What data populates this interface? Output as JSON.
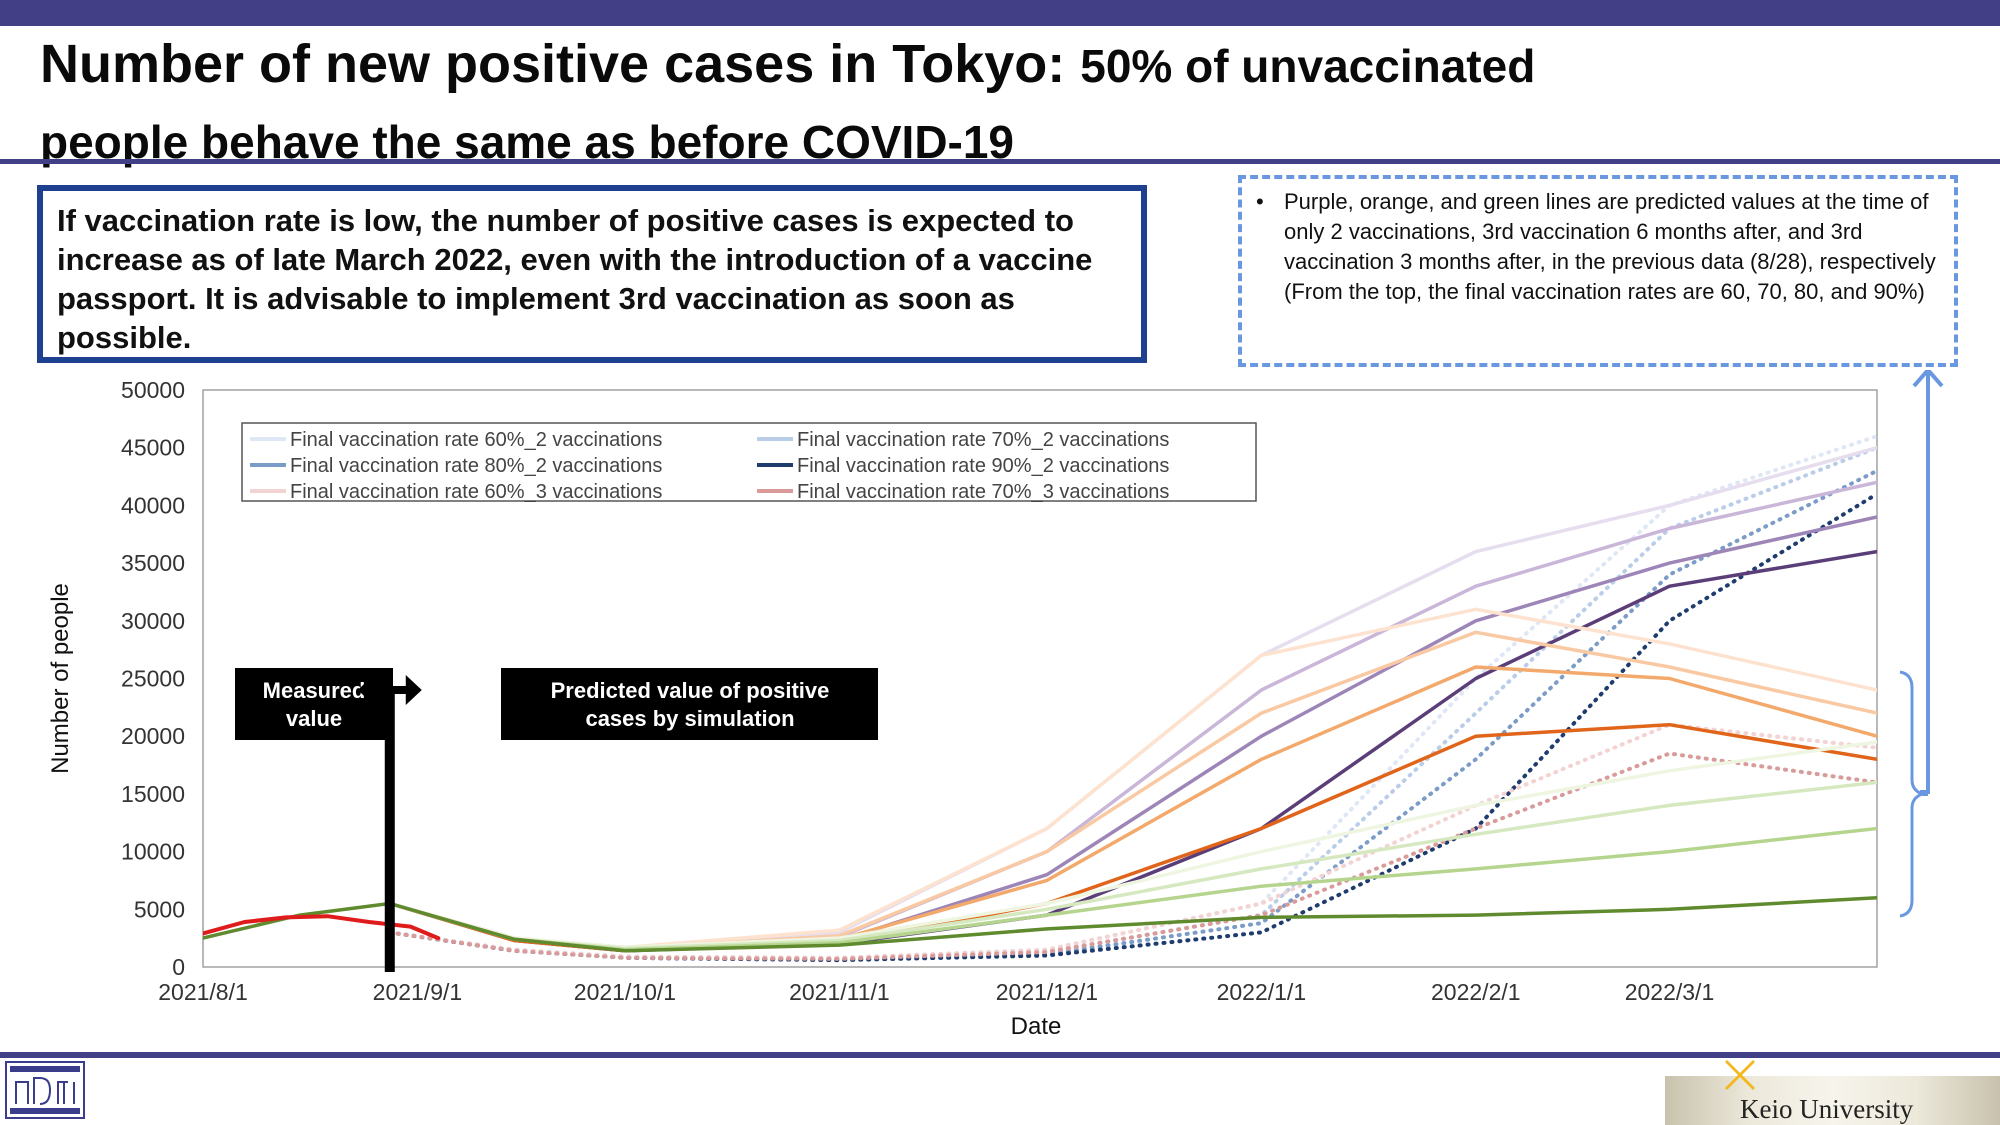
{
  "slide": {
    "title_part1": "Number of new positive cases in Tokyo: ",
    "title_part2": "50% of unvaccinated",
    "title_line2": "people behave the same as before COVID-19",
    "summary": "If vaccination rate is low, the number of positive cases is expected to increase as of late March 2022, even with the introduction of a vaccine passport. It is advisable to implement 3rd vaccination as soon as possible.",
    "note_bullet": "•",
    "note_line1": "Purple, orange, and green lines are predicted values at the time of only 2 vaccinations, 3rd vaccination 6 months after, and 3rd vaccination 3 months after, in the previous data (8/28), respectively",
    "note_line2": "(From the top, the final vaccination rates are 60, 70, 80, and 90%)",
    "footer_logo_text": "Keio University",
    "colors": {
      "band": "#423f86",
      "summary_border": "#1f3f8f",
      "note_border": "#6a98e0"
    }
  },
  "chart_data": {
    "type": "line",
    "xlabel": "Date",
    "ylabel": "Number of people",
    "ylim": [
      0,
      50000
    ],
    "yticks": [
      0,
      5000,
      10000,
      15000,
      20000,
      25000,
      30000,
      35000,
      40000,
      45000,
      50000
    ],
    "xticks": [
      "2021/8/1",
      "2021/9/1",
      "2021/10/1",
      "2021/11/1",
      "2021/12/1",
      "2022/1/1",
      "2022/2/1",
      "2022/3/1"
    ],
    "xrange": [
      "2021-08-01",
      "2022-03-31"
    ],
    "grid": false,
    "legend_position": "top-left inside plot",
    "legend": [
      {
        "label": "Final vaccination rate 60%_2 vaccinations",
        "color": "#dfe6f5"
      },
      {
        "label": "Final vaccination rate 70%_2 vaccinations",
        "color": "#b9cde9"
      },
      {
        "label": "Final vaccination rate 80%_2 vaccinations",
        "color": "#7c9cc8"
      },
      {
        "label": "Final vaccination rate 90%_2 vaccinations",
        "color": "#1f3c6e"
      },
      {
        "label": "Final vaccination rate 60%_3 vaccinations",
        "color": "#f3d2d2"
      },
      {
        "label": "Final vaccination rate 70%_3 vaccinations",
        "color": "#d99a9a"
      }
    ],
    "annotations": {
      "measured": "Measured value",
      "predicted": "Predicted value of positive cases by simulation",
      "split_date": "2021-08-28"
    },
    "series": [
      {
        "name": "Measured",
        "style": "measured",
        "color": "#e01b1b",
        "x": [
          "2021-08-01",
          "2021-08-07",
          "2021-08-13",
          "2021-08-19",
          "2021-08-25",
          "2021-08-31",
          "2021-09-04"
        ],
        "y": [
          2900,
          3900,
          4300,
          4400,
          3900,
          3500,
          2500
        ]
      },
      {
        "name": "Final vaccination rate 60%_2 vaccinations",
        "style": "dotted",
        "color": "#dfe6f5",
        "x": [
          "2021-08-28",
          "2021-09-15",
          "2021-10-01",
          "2021-11-01",
          "2021-12-01",
          "2022-01-01",
          "2022-02-01",
          "2022-03-01",
          "2022-03-31"
        ],
        "y": [
          3000,
          1500,
          900,
          800,
          1500,
          5500,
          25000,
          40000,
          46000
        ]
      },
      {
        "name": "Final vaccination rate 70%_2 vaccinations",
        "style": "dotted",
        "color": "#b9cde9",
        "x": [
          "2021-08-28",
          "2021-09-15",
          "2021-10-01",
          "2021-11-01",
          "2021-12-01",
          "2022-01-01",
          "2022-02-01",
          "2022-03-01",
          "2022-03-31"
        ],
        "y": [
          3000,
          1500,
          900,
          700,
          1300,
          4500,
          22000,
          38000,
          45000
        ]
      },
      {
        "name": "Final vaccination rate 80%_2 vaccinations",
        "style": "dotted",
        "color": "#7c9cc8",
        "x": [
          "2021-08-28",
          "2021-09-15",
          "2021-10-01",
          "2021-11-01",
          "2021-12-01",
          "2022-01-01",
          "2022-02-01",
          "2022-03-01",
          "2022-03-31"
        ],
        "y": [
          3000,
          1400,
          800,
          600,
          1100,
          3800,
          18000,
          34000,
          43000
        ]
      },
      {
        "name": "Final vaccination rate 90%_2 vaccinations",
        "style": "dotted",
        "color": "#1f3c6e",
        "x": [
          "2021-08-28",
          "2021-09-15",
          "2021-10-01",
          "2021-11-01",
          "2021-12-01",
          "2022-01-01",
          "2022-02-01",
          "2022-03-01",
          "2022-03-31"
        ],
        "y": [
          3000,
          1400,
          800,
          600,
          1000,
          3000,
          12000,
          30000,
          41000
        ]
      },
      {
        "name": "Final vaccination rate 60%_3 vaccinations",
        "style": "dotted",
        "color": "#f3d2d2",
        "x": [
          "2021-08-28",
          "2021-09-15",
          "2021-10-01",
          "2021-11-01",
          "2021-12-01",
          "2022-01-01",
          "2022-02-01",
          "2022-03-01",
          "2022-03-31"
        ],
        "y": [
          3000,
          1500,
          900,
          800,
          1500,
          5500,
          14000,
          21000,
          19000
        ]
      },
      {
        "name": "Final vaccination rate 70%_3 vaccinations",
        "style": "dotted",
        "color": "#d99a9a",
        "x": [
          "2021-08-28",
          "2021-09-15",
          "2021-10-01",
          "2021-11-01",
          "2021-12-01",
          "2022-01-01",
          "2022-02-01",
          "2022-03-01",
          "2022-03-31"
        ],
        "y": [
          3000,
          1400,
          800,
          700,
          1300,
          4500,
          12000,
          18500,
          16000
        ]
      },
      {
        "name": "",
        "style": "solid",
        "color": "#e6ddee",
        "x": [
          "2021-08-28",
          "2021-09-15",
          "2021-10-01",
          "2021-11-01",
          "2021-12-01",
          "2022-01-01",
          "2022-02-01",
          "2022-03-01",
          "2022-03-31"
        ],
        "y": [
          5500,
          2500,
          1700,
          3000,
          12000,
          27000,
          36000,
          40000,
          45000
        ]
      },
      {
        "name": "",
        "style": "solid",
        "color": "#c9b6d8",
        "x": [
          "2021-08-28",
          "2021-09-15",
          "2021-10-01",
          "2021-11-01",
          "2021-12-01",
          "2022-01-01",
          "2022-02-01",
          "2022-03-01",
          "2022-03-31"
        ],
        "y": [
          5500,
          2500,
          1600,
          2600,
          10000,
          24000,
          33000,
          38000,
          42000
        ]
      },
      {
        "name": "",
        "style": "solid",
        "color": "#9e85b8",
        "x": [
          "2021-08-28",
          "2021-09-15",
          "2021-10-01",
          "2021-11-01",
          "2021-12-01",
          "2022-01-01",
          "2022-02-01",
          "2022-03-01",
          "2022-03-31"
        ],
        "y": [
          5500,
          2400,
          1500,
          2300,
          8000,
          20000,
          30000,
          35000,
          39000
        ]
      },
      {
        "name": "",
        "style": "solid",
        "color": "#5b3e78",
        "x": [
          "2021-08-28",
          "2021-09-15",
          "2021-10-01",
          "2021-11-01",
          "2021-12-01",
          "2022-01-01",
          "2022-02-01",
          "2022-03-01",
          "2022-03-31"
        ],
        "y": [
          5500,
          2300,
          1400,
          2000,
          4500,
          12000,
          25000,
          33000,
          36000
        ]
      },
      {
        "name": "",
        "style": "solid",
        "color": "#fde3cf",
        "x": [
          "2021-08-28",
          "2021-09-15",
          "2021-10-01",
          "2021-11-01",
          "2021-12-01",
          "2022-01-01",
          "2022-02-01",
          "2022-03-01",
          "2022-03-31"
        ],
        "y": [
          5500,
          2500,
          1700,
          3200,
          12000,
          27000,
          31000,
          28000,
          24000
        ]
      },
      {
        "name": "",
        "style": "solid",
        "color": "#f9c9a3",
        "x": [
          "2021-08-28",
          "2021-09-15",
          "2021-10-01",
          "2021-11-01",
          "2021-12-01",
          "2022-01-01",
          "2022-02-01",
          "2022-03-01",
          "2022-03-31"
        ],
        "y": [
          5500,
          2500,
          1600,
          2700,
          10000,
          22000,
          29000,
          26000,
          22000
        ]
      },
      {
        "name": "",
        "style": "solid",
        "color": "#f3a96b",
        "x": [
          "2021-08-28",
          "2021-09-15",
          "2021-10-01",
          "2021-11-01",
          "2021-12-01",
          "2022-01-01",
          "2022-02-01",
          "2022-03-01",
          "2022-03-31"
        ],
        "y": [
          5500,
          2400,
          1500,
          2400,
          7500,
          18000,
          26000,
          25000,
          20000
        ]
      },
      {
        "name": "",
        "style": "solid",
        "color": "#e0651a",
        "x": [
          "2021-08-28",
          "2021-09-15",
          "2021-10-01",
          "2021-11-01",
          "2021-12-01",
          "2022-01-01",
          "2022-02-01",
          "2022-03-01",
          "2022-03-31"
        ],
        "y": [
          5500,
          2300,
          1400,
          2100,
          5500,
          12000,
          20000,
          21000,
          18000
        ]
      },
      {
        "name": "",
        "style": "solid",
        "color": "#eef5e0",
        "x": [
          "2021-08-28",
          "2021-09-15",
          "2021-10-01",
          "2021-11-01",
          "2021-12-01",
          "2022-01-01",
          "2022-02-01",
          "2022-03-01",
          "2022-03-31"
        ],
        "y": [
          5500,
          2500,
          1700,
          2500,
          5500,
          10000,
          14000,
          17000,
          19500
        ]
      },
      {
        "name": "",
        "style": "solid",
        "color": "#d6e8bf",
        "x": [
          "2021-08-28",
          "2021-09-15",
          "2021-10-01",
          "2021-11-01",
          "2021-12-01",
          "2022-01-01",
          "2022-02-01",
          "2022-03-01",
          "2022-03-31"
        ],
        "y": [
          5500,
          2400,
          1600,
          2300,
          5000,
          8500,
          11500,
          14000,
          16000
        ]
      },
      {
        "name": "",
        "style": "solid",
        "color": "#b5d58f",
        "x": [
          "2021-08-28",
          "2021-09-15",
          "2021-10-01",
          "2021-11-01",
          "2021-12-01",
          "2022-01-01",
          "2022-02-01",
          "2022-03-01",
          "2022-03-31"
        ],
        "y": [
          5500,
          2400,
          1500,
          2100,
          4500,
          7000,
          8500,
          10000,
          12000
        ]
      },
      {
        "name": "",
        "style": "solid",
        "color": "#5f8a2e",
        "x": [
          "2021-08-01",
          "2021-08-15",
          "2021-08-28",
          "2021-09-15",
          "2021-10-01",
          "2021-11-01",
          "2021-12-01",
          "2022-01-01",
          "2022-02-01",
          "2022-03-01",
          "2022-03-31"
        ],
        "y": [
          2500,
          4500,
          5500,
          2400,
          1400,
          1900,
          3300,
          4300,
          4500,
          5000,
          6000
        ]
      }
    ]
  }
}
